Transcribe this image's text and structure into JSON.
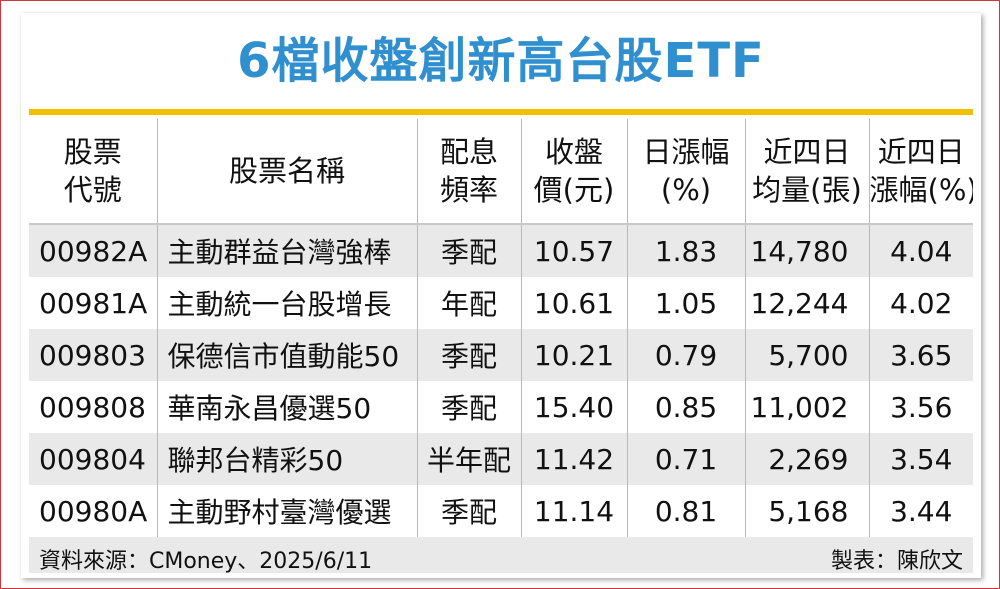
{
  "title": "6檔收盤創新高台股ETF",
  "headers": {
    "code": [
      "股票",
      "代號"
    ],
    "name": "股票名稱",
    "freq": [
      "配息",
      "頻率"
    ],
    "close": [
      "收盤",
      "價(元)"
    ],
    "daily": [
      "日漲幅",
      "(%)"
    ],
    "avg_vol": [
      "近四日",
      "均量(張)"
    ],
    "change4": [
      "近四日",
      "漲幅(%)"
    ]
  },
  "rows": [
    {
      "code": "00982A",
      "name": "主動群益台灣強棒",
      "freq": "季配",
      "close": "10.57",
      "daily": "1.83",
      "avg_vol": "14,780",
      "change4": "4.04"
    },
    {
      "code": "00981A",
      "name": "主動統一台股增長",
      "freq": "年配",
      "close": "10.61",
      "daily": "1.05",
      "avg_vol": "12,244",
      "change4": "4.02"
    },
    {
      "code": "009803",
      "name": "保德信市值動能50",
      "freq": "季配",
      "close": "10.21",
      "daily": "0.79",
      "avg_vol": "5,700",
      "change4": "3.65"
    },
    {
      "code": "009808",
      "name": "華南永昌優選50",
      "freq": "季配",
      "close": "15.40",
      "daily": "0.85",
      "avg_vol": "11,002",
      "change4": "3.56"
    },
    {
      "code": "009804",
      "name": "聯邦台精彩50",
      "freq": "半年配",
      "close": "11.42",
      "daily": "0.71",
      "avg_vol": "2,269",
      "change4": "3.54"
    },
    {
      "code": "00980A",
      "name": "主動野村臺灣優選",
      "freq": "季配",
      "close": "11.14",
      "daily": "0.81",
      "avg_vol": "5,168",
      "change4": "3.44"
    }
  ],
  "footer": {
    "source": "資料來源：CMoney、2025/6/11",
    "credit": "製表：陳欣文"
  },
  "colors": {
    "title": "#2f8fcf",
    "rule": "#f2c000",
    "stripe": "#e9e9ea",
    "border": "#d4343c"
  }
}
